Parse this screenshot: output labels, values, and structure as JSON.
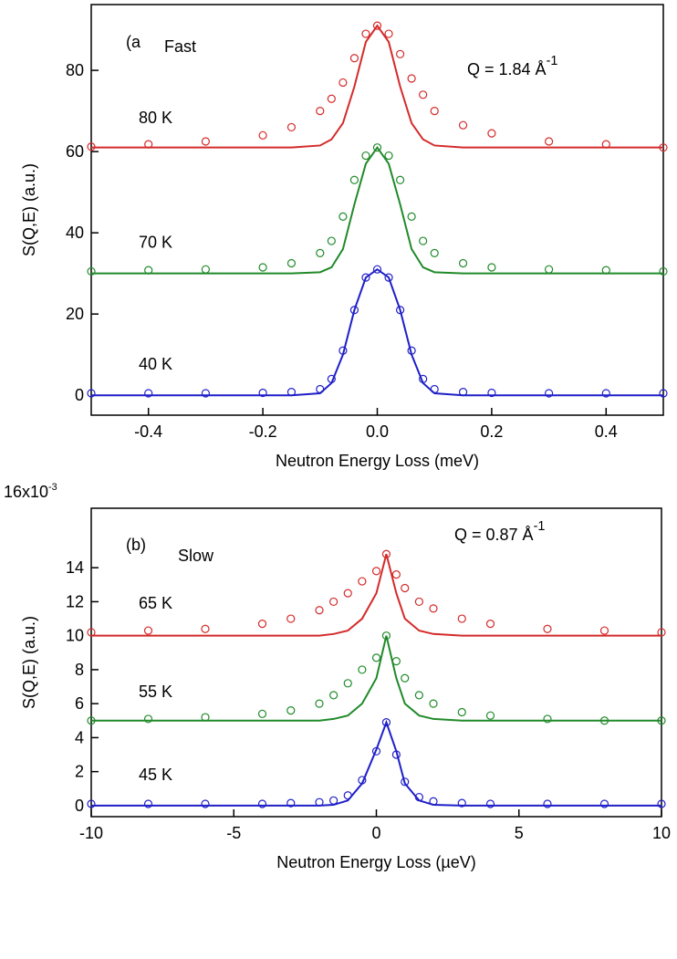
{
  "chart_data": [
    {
      "type": "line",
      "panel_label": "(a",
      "title": "Fast",
      "annotation": {
        "text": "Q = 1.84 Å",
        "superscript": "-1"
      },
      "xlabel": "Neutron Energy Loss (meV)",
      "ylabel": "S(Q,E) (a.u.)",
      "xlim": [
        -0.5,
        0.5
      ],
      "ylim": [
        -4.9,
        96.2
      ],
      "xticks": [
        -0.4,
        -0.2,
        {
          "value": 0,
          "label": "0.0"
        },
        0.2,
        0.4
      ],
      "yticks": [
        0,
        20,
        40,
        60,
        80
      ],
      "x": [
        -0.5,
        -0.4,
        -0.3,
        -0.2,
        -0.15,
        -0.1,
        -0.08,
        -0.06,
        -0.04,
        -0.02,
        0,
        0.02,
        0.04,
        0.06,
        0.08,
        0.1,
        0.15,
        0.2,
        0.3,
        0.4,
        0.5
      ],
      "series": [
        {
          "name": "80 K",
          "color": "#d42a2a",
          "values": [
            61.2,
            61.8,
            62.5,
            64,
            66,
            70,
            73,
            77,
            83,
            89,
            91,
            89,
            84,
            78,
            74,
            70,
            66.5,
            64.5,
            62.5,
            61.8,
            61
          ],
          "fit": [
            61,
            61,
            61,
            61,
            61,
            61.5,
            63,
            67,
            76,
            87,
            91,
            87,
            76,
            67,
            63,
            61.5,
            61,
            61,
            61,
            61,
            61
          ]
        },
        {
          "name": "70 K",
          "color": "#218a2a",
          "values": [
            30.5,
            30.8,
            31,
            31.5,
            32.5,
            35,
            38,
            44,
            53,
            59,
            61,
            59,
            53,
            44,
            38,
            35,
            32.5,
            31.5,
            31,
            30.8,
            30.5
          ],
          "fit": [
            30,
            30,
            30,
            30,
            30,
            30.3,
            31.5,
            36,
            47,
            57,
            61,
            57,
            47,
            36,
            31.5,
            30.3,
            30,
            30,
            30,
            30,
            30
          ]
        },
        {
          "name": "40 K",
          "color": "#1f1fc8",
          "values": [
            0.5,
            0.5,
            0.5,
            0.6,
            0.8,
            1.5,
            4,
            11,
            21,
            29,
            31,
            29,
            21,
            11,
            4,
            1.5,
            0.8,
            0.6,
            0.5,
            0.5,
            0.5
          ],
          "fit": [
            0,
            0,
            0,
            0,
            0,
            0.5,
            3,
            10,
            21,
            29,
            31,
            29,
            21,
            10,
            3,
            0.5,
            0,
            0,
            0,
            0,
            0
          ]
        }
      ]
    },
    {
      "type": "line",
      "panel_label": "(b)",
      "title": "Slow",
      "annotation": {
        "text": "Q = 0.87 Å",
        "superscript": "-1"
      },
      "y_scale_label": {
        "text": "16x10",
        "superscript": "-3"
      },
      "xlabel": "Neutron Energy Loss (µeV)",
      "ylabel": "S(Q,E) (a.u.)",
      "xlim": [
        -10,
        10
      ],
      "ylim": [
        -0.65,
        17.5
      ],
      "xticks": [
        -10,
        -5,
        0,
        5,
        10
      ],
      "yticks": [
        0,
        2,
        4,
        6,
        8,
        10,
        12,
        14
      ],
      "x": [
        -10,
        -8,
        -6,
        -4,
        -3,
        -2,
        -1.5,
        -1,
        -0.5,
        0,
        0.35,
        0.7,
        1,
        1.5,
        2,
        3,
        4,
        6,
        8,
        10
      ],
      "series": [
        {
          "name": "65 K",
          "color": "#d42a2a",
          "values": [
            10.2,
            10.3,
            10.4,
            10.7,
            11,
            11.5,
            12,
            12.5,
            13.2,
            13.8,
            14.8,
            13.6,
            12.8,
            12,
            11.6,
            11,
            10.7,
            10.4,
            10.3,
            10.2
          ],
          "fit": [
            10,
            10,
            10,
            10,
            10,
            10,
            10.1,
            10.3,
            11,
            12.5,
            14.8,
            12.5,
            11,
            10.3,
            10.1,
            10,
            10,
            10,
            10,
            10
          ]
        },
        {
          "name": "55 K",
          "color": "#218a2a",
          "values": [
            5,
            5.1,
            5.2,
            5.4,
            5.6,
            6,
            6.5,
            7.2,
            8,
            8.7,
            10,
            8.5,
            7.5,
            6.5,
            6,
            5.5,
            5.3,
            5.1,
            5,
            5
          ],
          "fit": [
            5,
            5,
            5,
            5,
            5,
            5,
            5.1,
            5.3,
            6,
            7.5,
            10,
            7.5,
            6,
            5.3,
            5.1,
            5,
            5,
            5,
            5,
            5
          ]
        },
        {
          "name": "45 K",
          "color": "#1f1fc8",
          "values": [
            0.1,
            0.1,
            0.1,
            0.1,
            0.15,
            0.2,
            0.3,
            0.6,
            1.5,
            3.2,
            4.9,
            3,
            1.4,
            0.5,
            0.25,
            0.15,
            0.1,
            0.1,
            0.1,
            0.1
          ],
          "fit": [
            0,
            0,
            0,
            0,
            0,
            0,
            0.05,
            0.3,
            1.3,
            3.3,
            4.9,
            3.2,
            1.3,
            0.3,
            0.05,
            0,
            0,
            0,
            0,
            0
          ]
        }
      ]
    }
  ]
}
